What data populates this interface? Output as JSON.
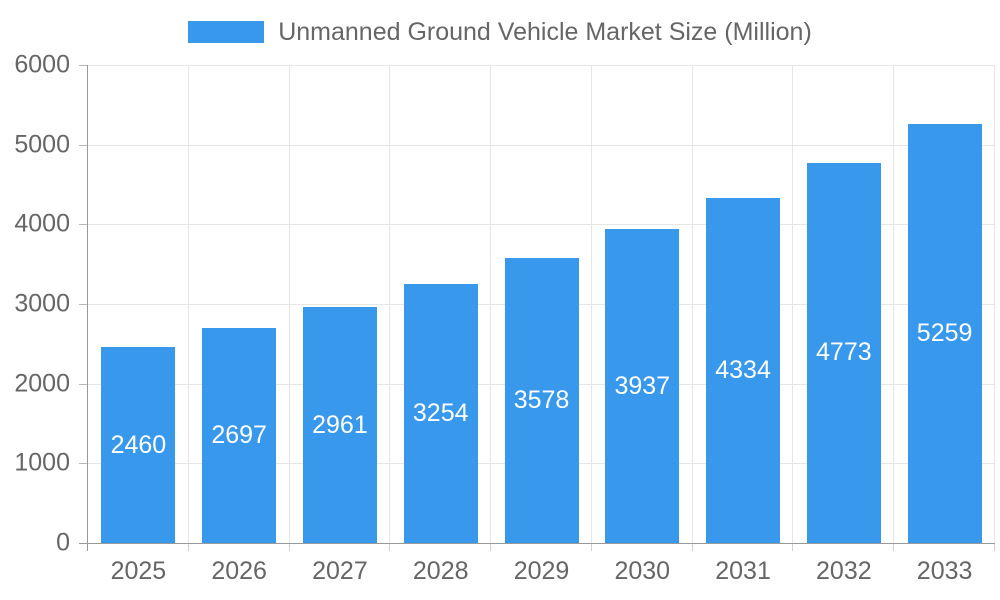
{
  "colors": {
    "bar": "#3898ec",
    "grid": "#e6e6e6",
    "axis": "#999999",
    "tick_label": "#666666",
    "value_label": "#ffffff"
  },
  "legend": {
    "label": "Unmanned Ground Vehicle Market Size (Million)"
  },
  "chart_data": {
    "type": "bar",
    "title": "Unmanned Ground Vehicle Market Size (Million)",
    "categories": [
      "2025",
      "2026",
      "2027",
      "2028",
      "2029",
      "2030",
      "2031",
      "2032",
      "2033"
    ],
    "values": [
      2460,
      2697,
      2961,
      3254,
      3578,
      3937,
      4334,
      4773,
      5259
    ],
    "series_name": "Unmanned Ground Vehicle Market Size (Million)",
    "xlabel": "",
    "ylabel": "",
    "ylim": [
      0,
      6000
    ],
    "yticks": [
      0,
      1000,
      2000,
      3000,
      4000,
      5000,
      6000
    ],
    "grid": "on",
    "legend_position": "top",
    "value_labels": "inside-center"
  }
}
